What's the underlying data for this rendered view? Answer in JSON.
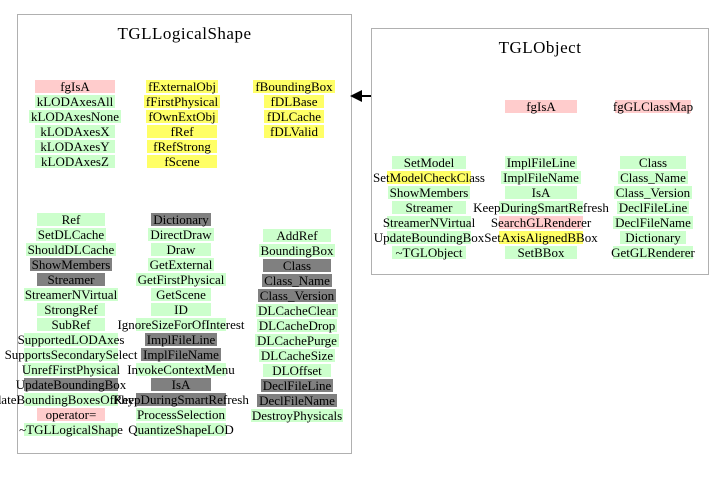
{
  "colors": {
    "g": "#ccffcc",
    "y": "#ffff66",
    "p": "#ffcccc",
    "gr": "#808080"
  },
  "left_class": {
    "title": "TGLLogicalShape",
    "fields_col1": [
      {
        "t": "fgIsA",
        "c": "p"
      },
      {
        "t": "kLODAxesAll",
        "c": "g"
      },
      {
        "t": "kLODAxesNone",
        "c": "g"
      },
      {
        "t": "kLODAxesX",
        "c": "g"
      },
      {
        "t": "kLODAxesY",
        "c": "g"
      },
      {
        "t": "kLODAxesZ",
        "c": "g"
      }
    ],
    "fields_col2": [
      {
        "t": "fExternalObj",
        "c": "y"
      },
      {
        "t": "fFirstPhysical",
        "c": "y"
      },
      {
        "t": "fOwnExtObj",
        "c": "y"
      },
      {
        "t": "fRef",
        "c": "y"
      },
      {
        "t": "fRefStrong",
        "c": "y"
      },
      {
        "t": "fScene",
        "c": "y"
      }
    ],
    "fields_col3": [
      {
        "t": "fBoundingBox",
        "c": "y"
      },
      {
        "t": "fDLBase",
        "c": "y"
      },
      {
        "t": "fDLCache",
        "c": "y"
      },
      {
        "t": "fDLValid",
        "c": "y"
      }
    ],
    "methods_col1": [
      {
        "t": "Ref",
        "c": "g"
      },
      {
        "t": "SetDLCache",
        "c": "g"
      },
      {
        "t": "ShouldDLCache",
        "c": "g"
      },
      {
        "t": "ShowMembers",
        "c": "gr"
      },
      {
        "t": "Streamer",
        "c": "gr"
      },
      {
        "t": "StreamerNVirtual",
        "c": "g"
      },
      {
        "t": "StrongRef",
        "c": "g"
      },
      {
        "t": "SubRef",
        "c": "g"
      },
      {
        "t": "SupportedLODAxes",
        "c": "g"
      },
      {
        "t": "SupportsSecondarySelect",
        "c": "g"
      },
      {
        "t": "UnrefFirstPhysical",
        "c": "g"
      },
      {
        "t": "UpdateBoundingBox",
        "c": "gr"
      },
      {
        "t": "UpdateBoundingBoxesOfPhysicals",
        "c": "g"
      },
      {
        "t": "operator=",
        "c": "p"
      },
      {
        "t": "~TGLLogicalShape",
        "c": "g"
      }
    ],
    "methods_col2": [
      {
        "t": "Dictionary",
        "c": "gr"
      },
      {
        "t": "DirectDraw",
        "c": "g"
      },
      {
        "t": "Draw",
        "c": "g"
      },
      {
        "t": "GetExternal",
        "c": "g"
      },
      {
        "t": "GetFirstPhysical",
        "c": "g"
      },
      {
        "t": "GetScene",
        "c": "g"
      },
      {
        "t": "ID",
        "c": "g"
      },
      {
        "t": "IgnoreSizeForOfInterest",
        "c": "g"
      },
      {
        "t": "ImplFileLine",
        "c": "gr"
      },
      {
        "t": "ImplFileName",
        "c": "gr"
      },
      {
        "t": "InvokeContextMenu",
        "c": "g"
      },
      {
        "t": "IsA",
        "c": "gr"
      },
      {
        "t": "KeepDuringSmartRefresh",
        "c": "gr"
      },
      {
        "t": "ProcessSelection",
        "c": "g"
      },
      {
        "t": "QuantizeShapeLOD",
        "c": "g"
      }
    ],
    "methods_col3": [
      {
        "t": "AddRef",
        "c": "g"
      },
      {
        "t": "BoundingBox",
        "c": "g"
      },
      {
        "t": "Class",
        "c": "gr"
      },
      {
        "t": "Class_Name",
        "c": "gr"
      },
      {
        "t": "Class_Version",
        "c": "gr"
      },
      {
        "t": "DLCacheClear",
        "c": "g"
      },
      {
        "t": "DLCacheDrop",
        "c": "g"
      },
      {
        "t": "DLCachePurge",
        "c": "g"
      },
      {
        "t": "DLCacheSize",
        "c": "g"
      },
      {
        "t": "DLOffset",
        "c": "g"
      },
      {
        "t": "DeclFileLine",
        "c": "gr"
      },
      {
        "t": "DeclFileName",
        "c": "gr"
      },
      {
        "t": "DestroyPhysicals",
        "c": "g"
      }
    ]
  },
  "right_class": {
    "title": "TGLObject",
    "fields_col1": [
      {
        "t": "fgIsA",
        "c": "p"
      }
    ],
    "fields_col2": [
      {
        "t": "fgGLClassMap",
        "c": "p"
      }
    ],
    "methods_col1": [
      {
        "t": "SetModel",
        "c": "g"
      },
      {
        "t": "SetModelCheckClass",
        "c": "y"
      },
      {
        "t": "ShowMembers",
        "c": "g"
      },
      {
        "t": "Streamer",
        "c": "g"
      },
      {
        "t": "StreamerNVirtual",
        "c": "g"
      },
      {
        "t": "UpdateBoundingBox",
        "c": "g"
      },
      {
        "t": "~TGLObject",
        "c": "g"
      }
    ],
    "methods_col2": [
      {
        "t": "ImplFileLine",
        "c": "g"
      },
      {
        "t": "ImplFileName",
        "c": "g"
      },
      {
        "t": "IsA",
        "c": "g"
      },
      {
        "t": "KeepDuringSmartRefresh",
        "c": "g"
      },
      {
        "t": "SearchGLRenderer",
        "c": "p"
      },
      {
        "t": "SetAxisAlignedBBox",
        "c": "y"
      },
      {
        "t": "SetBBox",
        "c": "g"
      }
    ],
    "methods_col3": [
      {
        "t": "Class",
        "c": "g"
      },
      {
        "t": "Class_Name",
        "c": "g"
      },
      {
        "t": "Class_Version",
        "c": "g"
      },
      {
        "t": "DeclFileLine",
        "c": "g"
      },
      {
        "t": "DeclFileName",
        "c": "g"
      },
      {
        "t": "Dictionary",
        "c": "g"
      },
      {
        "t": "GetGLRenderer",
        "c": "g"
      }
    ]
  },
  "relation": {
    "arrow_icon": "inherits-left-arrow"
  }
}
